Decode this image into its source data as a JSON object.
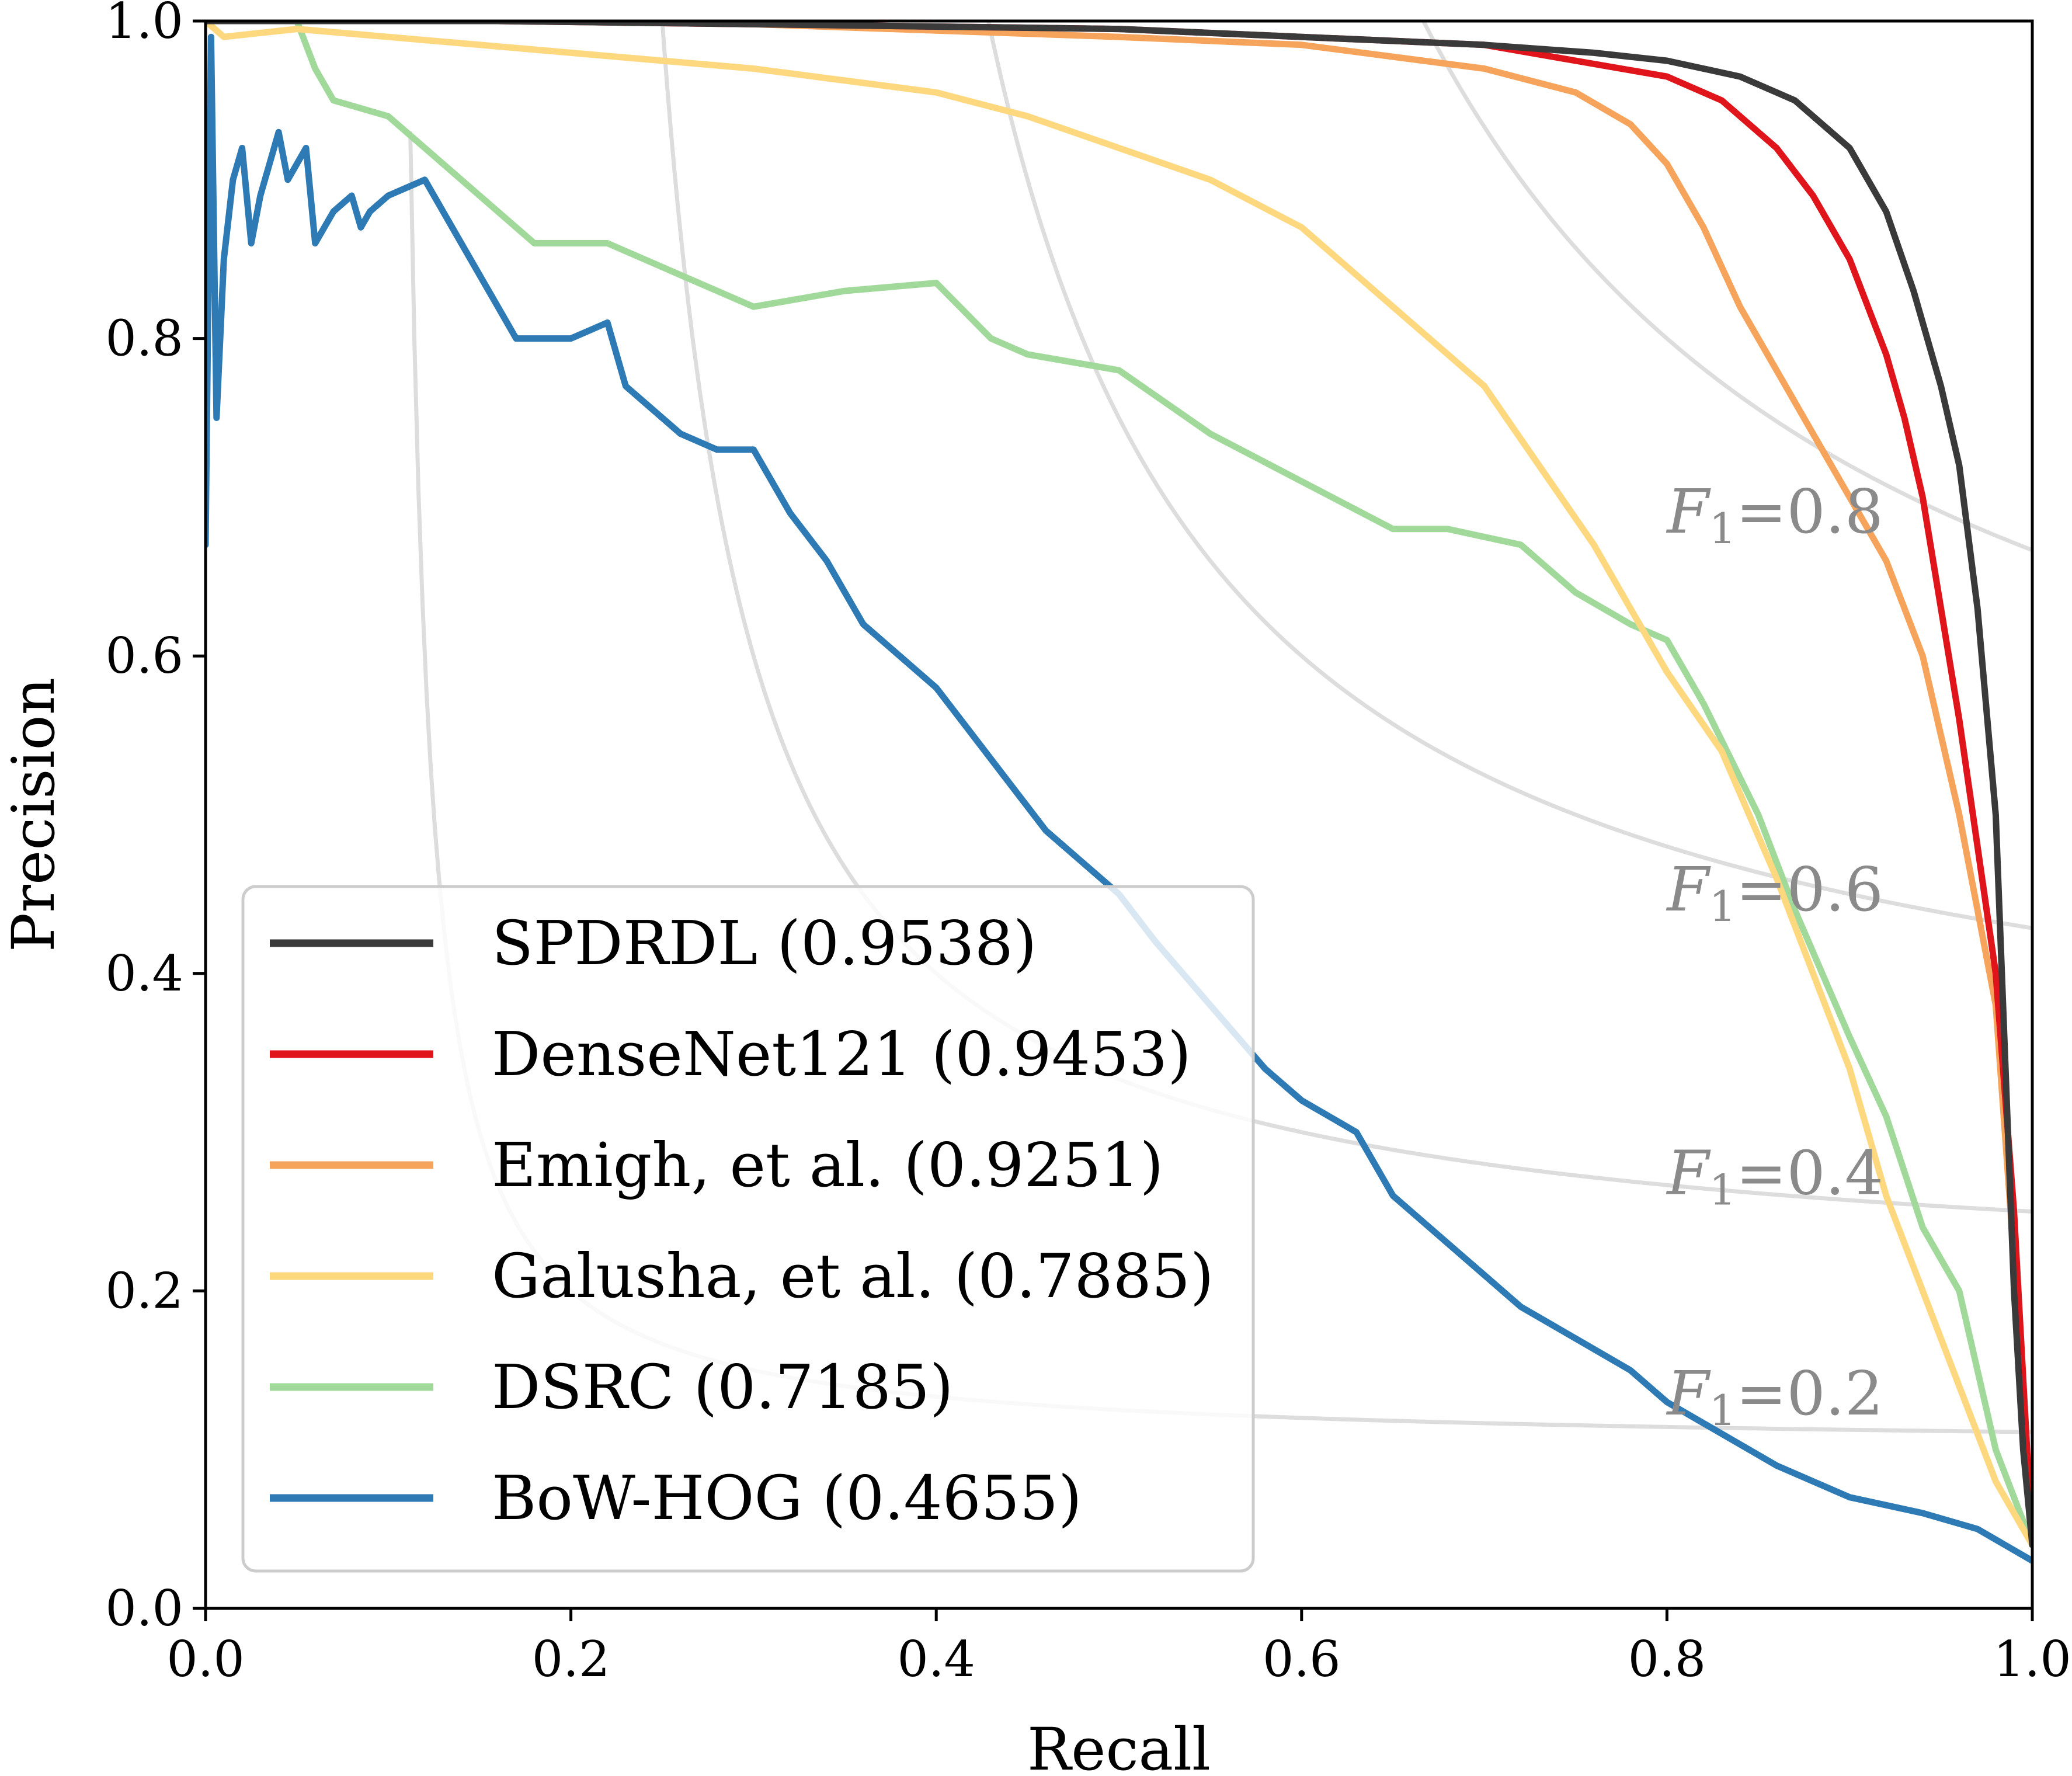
{
  "chart_data": {
    "type": "line",
    "title": "",
    "xlabel": "Recall",
    "ylabel": "Precision",
    "xlim": [
      0.0,
      1.0
    ],
    "ylim": [
      0.0,
      1.0
    ],
    "xticks": [
      "0.0",
      "0.2",
      "0.4",
      "0.6",
      "0.8",
      "1.0"
    ],
    "yticks": [
      "0.0",
      "0.2",
      "0.4",
      "0.6",
      "0.8",
      "1.0"
    ],
    "grid": false,
    "legend_position": "lower-left",
    "iso_f1": [
      {
        "f": 0.2,
        "label_var": "F",
        "label_sub": "1",
        "label_rest": "=0.2"
      },
      {
        "f": 0.4,
        "label_var": "F",
        "label_sub": "1",
        "label_rest": "=0.4"
      },
      {
        "f": 0.6,
        "label_var": "F",
        "label_sub": "1",
        "label_rest": "=0.6"
      },
      {
        "f": 0.8,
        "label_var": "F",
        "label_sub": "1",
        "label_rest": "=0.8"
      }
    ],
    "series": [
      {
        "name": "SPDRDL (0.9538)",
        "color": "#3a3a3a",
        "x": [
          0.0,
          0.05,
          0.16,
          0.3,
          0.5,
          0.6,
          0.7,
          0.76,
          0.8,
          0.84,
          0.87,
          0.9,
          0.92,
          0.935,
          0.95,
          0.96,
          0.97,
          0.98,
          0.985,
          0.99,
          0.995,
          1.0
        ],
        "y": [
          1.0,
          1.0,
          1.0,
          0.998,
          0.995,
          0.99,
          0.985,
          0.98,
          0.975,
          0.965,
          0.95,
          0.92,
          0.88,
          0.83,
          0.77,
          0.72,
          0.63,
          0.5,
          0.35,
          0.2,
          0.1,
          0.04
        ]
      },
      {
        "name": "DenseNet121 (0.9453)",
        "color": "#e0141b",
        "x": [
          0.0,
          0.05,
          0.16,
          0.3,
          0.5,
          0.6,
          0.7,
          0.75,
          0.8,
          0.83,
          0.86,
          0.88,
          0.9,
          0.91,
          0.92,
          0.93,
          0.94,
          0.95,
          0.96,
          0.97,
          0.98,
          0.99,
          1.0
        ],
        "y": [
          1.0,
          1.0,
          1.0,
          0.998,
          0.995,
          0.99,
          0.985,
          0.975,
          0.965,
          0.95,
          0.92,
          0.89,
          0.85,
          0.82,
          0.79,
          0.75,
          0.7,
          0.63,
          0.56,
          0.48,
          0.4,
          0.25,
          0.04
        ]
      },
      {
        "name": "Emigh, et al. (0.9251)",
        "color": "#f6a45b",
        "x": [
          0.0,
          0.05,
          0.16,
          0.3,
          0.5,
          0.6,
          0.7,
          0.75,
          0.78,
          0.8,
          0.82,
          0.84,
          0.86,
          0.88,
          0.9,
          0.92,
          0.94,
          0.95,
          0.96,
          0.97,
          0.98,
          0.99,
          1.0
        ],
        "y": [
          1.0,
          1.0,
          1.0,
          0.998,
          0.99,
          0.985,
          0.97,
          0.955,
          0.935,
          0.91,
          0.87,
          0.82,
          0.78,
          0.74,
          0.7,
          0.66,
          0.6,
          0.55,
          0.5,
          0.44,
          0.38,
          0.22,
          0.04
        ]
      },
      {
        "name": "Galusha, et al. (0.7885)",
        "color": "#fdd87f",
        "x": [
          0.0,
          0.01,
          0.05,
          0.1,
          0.2,
          0.3,
          0.4,
          0.45,
          0.5,
          0.55,
          0.6,
          0.65,
          0.7,
          0.73,
          0.76,
          0.78,
          0.8,
          0.83,
          0.86,
          0.88,
          0.9,
          0.92,
          0.94,
          0.96,
          0.98,
          1.0
        ],
        "y": [
          1.0,
          0.99,
          0.995,
          0.99,
          0.98,
          0.97,
          0.955,
          0.94,
          0.92,
          0.9,
          0.87,
          0.82,
          0.77,
          0.72,
          0.67,
          0.63,
          0.59,
          0.54,
          0.46,
          0.4,
          0.34,
          0.26,
          0.2,
          0.14,
          0.08,
          0.04
        ]
      },
      {
        "name": "DSRC (0.7185)",
        "color": "#a1d99b",
        "x": [
          0.0,
          0.05,
          0.06,
          0.07,
          0.1,
          0.12,
          0.15,
          0.18,
          0.22,
          0.26,
          0.3,
          0.35,
          0.4,
          0.43,
          0.45,
          0.5,
          0.55,
          0.6,
          0.65,
          0.68,
          0.72,
          0.75,
          0.78,
          0.8,
          0.82,
          0.85,
          0.87,
          0.9,
          0.92,
          0.94,
          0.96,
          0.98,
          1.0
        ],
        "y": [
          1.0,
          1.0,
          0.97,
          0.95,
          0.94,
          0.92,
          0.89,
          0.86,
          0.86,
          0.84,
          0.82,
          0.83,
          0.835,
          0.8,
          0.79,
          0.78,
          0.74,
          0.71,
          0.68,
          0.68,
          0.67,
          0.64,
          0.62,
          0.61,
          0.57,
          0.5,
          0.44,
          0.36,
          0.31,
          0.24,
          0.2,
          0.1,
          0.04
        ]
      },
      {
        "name": "BoW-HOG (0.4655)",
        "color": "#2d7ab5",
        "x": [
          0.0,
          0.003,
          0.006,
          0.01,
          0.015,
          0.02,
          0.025,
          0.03,
          0.04,
          0.045,
          0.05,
          0.055,
          0.06,
          0.07,
          0.08,
          0.085,
          0.09,
          0.1,
          0.12,
          0.14,
          0.16,
          0.17,
          0.18,
          0.2,
          0.22,
          0.23,
          0.24,
          0.26,
          0.28,
          0.3,
          0.32,
          0.34,
          0.36,
          0.38,
          0.4,
          0.42,
          0.44,
          0.46,
          0.48,
          0.5,
          0.52,
          0.55,
          0.58,
          0.6,
          0.63,
          0.65,
          0.68,
          0.7,
          0.72,
          0.75,
          0.78,
          0.8,
          0.83,
          0.86,
          0.9,
          0.94,
          0.97,
          1.0
        ],
        "y": [
          0.67,
          0.99,
          0.75,
          0.85,
          0.9,
          0.92,
          0.86,
          0.89,
          0.93,
          0.9,
          0.91,
          0.92,
          0.86,
          0.88,
          0.89,
          0.87,
          0.88,
          0.89,
          0.9,
          0.86,
          0.82,
          0.8,
          0.8,
          0.8,
          0.81,
          0.77,
          0.76,
          0.74,
          0.73,
          0.73,
          0.69,
          0.66,
          0.62,
          0.6,
          0.58,
          0.55,
          0.52,
          0.49,
          0.47,
          0.45,
          0.42,
          0.38,
          0.34,
          0.32,
          0.3,
          0.26,
          0.23,
          0.21,
          0.19,
          0.17,
          0.15,
          0.13,
          0.11,
          0.09,
          0.07,
          0.06,
          0.05,
          0.03
        ]
      }
    ]
  }
}
